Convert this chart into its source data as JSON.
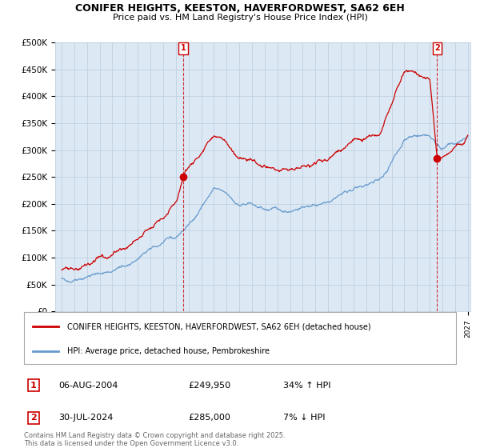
{
  "title1": "CONIFER HEIGHTS, KEESTON, HAVERFORDWEST, SA62 6EH",
  "title2": "Price paid vs. HM Land Registry's House Price Index (HPI)",
  "ylabel_vals": [
    "£0",
    "£50K",
    "£100K",
    "£150K",
    "£200K",
    "£250K",
    "£300K",
    "£350K",
    "£400K",
    "£450K",
    "£500K"
  ],
  "ylim": [
    0,
    500000
  ],
  "xlim_start": 1994.5,
  "xlim_end": 2027.2,
  "red_color": "#cc0000",
  "blue_color": "#6699cc",
  "chart_bg": "#dce9f5",
  "marker1_x": 2004.59,
  "marker1_y": 249950,
  "marker2_x": 2024.58,
  "marker2_y": 285000,
  "legend_label1": "CONIFER HEIGHTS, KEESTON, HAVERFORDWEST, SA62 6EH (detached house)",
  "legend_label2": "HPI: Average price, detached house, Pembrokeshire",
  "ann1_label": "1",
  "ann1_date": "06-AUG-2004",
  "ann1_price": "£249,950",
  "ann1_hpi": "34% ↑ HPI",
  "ann2_label": "2",
  "ann2_date": "30-JUL-2024",
  "ann2_price": "£285,000",
  "ann2_hpi": "7% ↓ HPI",
  "footer": "Contains HM Land Registry data © Crown copyright and database right 2025.\nThis data is licensed under the Open Government Licence v3.0.",
  "bg_color": "#ffffff",
  "grid_color": "#bbccdd",
  "hpi_knots_x": [
    1995,
    1996,
    1997,
    1998,
    1999,
    2000,
    2001,
    2002,
    2003,
    2004,
    2005,
    2006,
    2007,
    2008,
    2009,
    2010,
    2011,
    2012,
    2013,
    2014,
    2015,
    2016,
    2017,
    2018,
    2019,
    2020,
    2021,
    2022,
    2023,
    2024,
    2024.5,
    2025,
    2026,
    2027
  ],
  "hpi_knots_y": [
    57000,
    60000,
    65000,
    70000,
    76000,
    84000,
    97000,
    115000,
    128000,
    138000,
    160000,
    193000,
    228000,
    218000,
    198000,
    198000,
    190000,
    188000,
    188000,
    193000,
    198000,
    207000,
    218000,
    228000,
    234000,
    242000,
    278000,
    320000,
    328000,
    328000,
    312000,
    305000,
    310000,
    325000
  ],
  "red_knots_x": [
    1995,
    1996,
    1997,
    1998,
    1999,
    2000,
    2001,
    2002,
    2003,
    2004,
    2004.59,
    2005,
    2006,
    2007,
    2008,
    2009,
    2010,
    2011,
    2012,
    2013,
    2014,
    2015,
    2016,
    2017,
    2018,
    2019,
    2020,
    2021,
    2022,
    2022.5,
    2023,
    2024,
    2024.58,
    2025,
    2026,
    2027
  ],
  "red_knots_y": [
    80000,
    83000,
    88000,
    95000,
    103000,
    116000,
    132000,
    155000,
    178000,
    200000,
    249950,
    268000,
    300000,
    325000,
    310000,
    282000,
    278000,
    268000,
    262000,
    262000,
    268000,
    275000,
    288000,
    302000,
    315000,
    322000,
    336000,
    385000,
    445000,
    448000,
    440000,
    430000,
    285000,
    290000,
    300000,
    315000
  ]
}
